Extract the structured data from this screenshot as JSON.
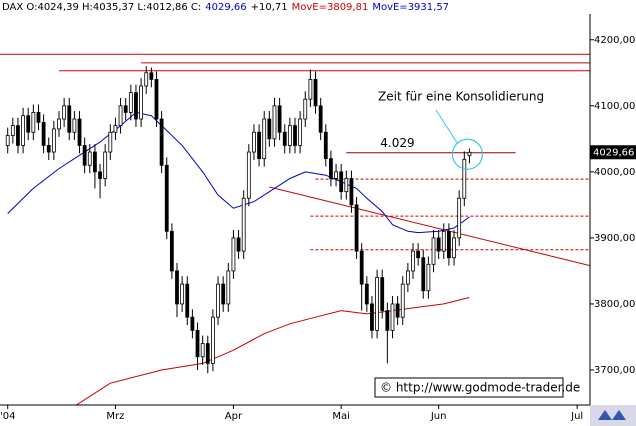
{
  "chart_data": {
    "type": "candlestick",
    "header": [
      {
        "text": "DAX O:4024,39 H:4035,37 L:4012,86 C:",
        "color": "#000000"
      },
      {
        "text": "4029,66",
        "color": "#0000cc"
      },
      {
        "text": "+10,71",
        "color": "#000000"
      },
      {
        "text": "MovE=3809,81",
        "color": "#cc0000"
      },
      {
        "text": "MovE=3931,57",
        "color": "#0000cc"
      }
    ],
    "x": [
      0,
      1,
      2,
      3,
      4,
      5,
      6,
      7,
      8,
      9,
      10,
      11,
      12,
      13,
      14,
      15,
      16,
      17,
      18,
      19,
      20,
      21,
      22,
      23,
      24,
      25,
      26,
      27,
      28,
      29,
      30,
      31,
      32,
      33,
      34,
      35,
      36,
      37,
      38,
      39,
      40,
      41,
      42,
      43,
      44,
      45,
      46,
      47,
      48,
      49,
      50,
      51,
      52,
      53,
      54,
      55,
      56,
      57,
      58,
      59,
      60,
      61,
      62,
      63,
      64,
      65,
      66,
      67,
      68,
      69,
      70,
      71,
      72,
      73,
      74,
      75,
      76,
      77,
      78,
      79,
      80,
      81,
      82,
      83,
      84,
      85,
      86,
      87,
      88,
      89,
      90
    ],
    "open": [
      4040,
      4055,
      4070,
      4040,
      4085,
      4060,
      4090,
      4075,
      4040,
      4030,
      4065,
      4080,
      4100,
      4060,
      4080,
      4040,
      4010,
      4030,
      4000,
      3990,
      4030,
      4060,
      4070,
      4100,
      4090,
      4120,
      4080,
      4130,
      4150,
      4140,
      4080,
      4010,
      3910,
      3850,
      3800,
      3830,
      3780,
      3760,
      3720,
      3740,
      3710,
      3780,
      3830,
      3800,
      3850,
      3900,
      3880,
      3960,
      4030,
      4060,
      4020,
      4080,
      4050,
      4100,
      4060,
      4040,
      4070,
      4040,
      4080,
      4110,
      4140,
      4100,
      4060,
      4020,
      3990,
      4000,
      3970,
      3990,
      3950,
      3880,
      3830,
      3800,
      3760,
      3840,
      3790,
      3760,
      3800,
      3780,
      3830,
      3850,
      3880,
      3870,
      3820,
      3860,
      3900,
      3880,
      3910,
      3870,
      3900,
      3960,
      4024.39
    ],
    "high": [
      4067,
      4082,
      4082,
      4097,
      4097,
      4102,
      4102,
      4087,
      4052,
      4077,
      4092,
      4112,
      4112,
      4092,
      4092,
      4052,
      4042,
      4042,
      4012,
      4042,
      4072,
      4082,
      4112,
      4112,
      4132,
      4132,
      4142,
      4160,
      4158,
      4152,
      4092,
      4022,
      3922,
      3862,
      3842,
      3842,
      3792,
      3772,
      3752,
      3752,
      3792,
      3842,
      3842,
      3862,
      3912,
      3912,
      3972,
      4042,
      4072,
      4072,
      4092,
      4092,
      4112,
      4112,
      4072,
      4082,
      4082,
      4092,
      4122,
      4155,
      4152,
      4112,
      4072,
      4032,
      4012,
      4012,
      4002,
      4002,
      3962,
      3892,
      3842,
      3812,
      3852,
      3852,
      3802,
      3812,
      3812,
      3842,
      3862,
      3892,
      3892,
      3882,
      3872,
      3912,
      3912,
      3922,
      3922,
      3912,
      3972,
      4031,
      4035.37
    ],
    "low": [
      4028,
      4043,
      4028,
      4028,
      4048,
      4048,
      4063,
      4028,
      4018,
      4018,
      4053,
      4068,
      4048,
      4048,
      4028,
      3998,
      3998,
      3975,
      3960,
      3978,
      4018,
      4048,
      4058,
      4078,
      4078,
      4068,
      4068,
      4118,
      4128,
      4068,
      3998,
      3898,
      3838,
      3780,
      3788,
      3768,
      3748,
      3700,
      3708,
      3695,
      3698,
      3768,
      3788,
      3788,
      3838,
      3868,
      3868,
      3948,
      4018,
      4008,
      4008,
      4038,
      4038,
      4048,
      4028,
      4028,
      4028,
      4028,
      4068,
      4098,
      4088,
      4048,
      4008,
      3978,
      3978,
      3958,
      3958,
      3938,
      3868,
      3790,
      3788,
      3748,
      3748,
      3778,
      3710,
      3748,
      3768,
      3768,
      3818,
      3838,
      3858,
      3808,
      3808,
      3848,
      3868,
      3868,
      3858,
      3858,
      3888,
      3948,
      4012.86
    ],
    "close": [
      4055,
      4070,
      4040,
      4085,
      4060,
      4090,
      4075,
      4040,
      4030,
      4065,
      4080,
      4100,
      4060,
      4080,
      4040,
      4010,
      4030,
      4000,
      3990,
      4030,
      4060,
      4070,
      4100,
      4090,
      4120,
      4080,
      4130,
      4150,
      4140,
      4080,
      4010,
      3910,
      3850,
      3800,
      3830,
      3780,
      3760,
      3720,
      3740,
      3710,
      3780,
      3830,
      3800,
      3850,
      3900,
      3880,
      3960,
      4030,
      4060,
      4020,
      4080,
      4050,
      4100,
      4060,
      4040,
      4070,
      4040,
      4080,
      4110,
      4140,
      4100,
      4060,
      4020,
      3990,
      4000,
      3970,
      3990,
      3950,
      3880,
      3830,
      3800,
      3760,
      3840,
      3790,
      3760,
      3800,
      3780,
      3830,
      3850,
      3880,
      3870,
      3820,
      3860,
      3900,
      3880,
      3910,
      3870,
      3900,
      3960,
      4019,
      4029.66
    ],
    "last_price_label": "4029,66",
    "moving_averages": [
      {
        "color": "#cc0000",
        "x": [
          13,
          20,
          30,
          38,
          44,
          50,
          55,
          60,
          65,
          70,
          75,
          80,
          85,
          90
        ],
        "values": [
          3645,
          3680,
          3700,
          3710,
          3730,
          3755,
          3770,
          3780,
          3790,
          3785,
          3790,
          3795,
          3800,
          3809.81
        ]
      },
      {
        "color": "#0000cc",
        "x": [
          0,
          5,
          10,
          14,
          18,
          22,
          25,
          28,
          30,
          34,
          38,
          41,
          44,
          48,
          52,
          55,
          58,
          62,
          65,
          68,
          70,
          73,
          75,
          78,
          80,
          84,
          87,
          90
        ],
        "values": [
          3937,
          3975,
          4005,
          4025,
          4045,
          4070,
          4090,
          4085,
          4070,
          4040,
          4000,
          3965,
          3945,
          3955,
          3975,
          3990,
          4000,
          3995,
          3985,
          3975,
          3960,
          3940,
          3920,
          3910,
          3908,
          3910,
          3915,
          3931.57
        ]
      }
    ],
    "levels": [
      {
        "value": 4178,
        "from": -1.5,
        "to": 113.5,
        "color": "#cc0000",
        "dashed": false
      },
      {
        "value": 4165,
        "from": 26,
        "to": 113.5,
        "color": "#cc0000",
        "dashed": false
      },
      {
        "value": 4153,
        "from": 10,
        "to": 113.5,
        "color": "#cc0000",
        "dashed": false
      },
      {
        "value": 3989,
        "from": 60,
        "to": 113.5,
        "color": "#cc0000",
        "dashed": true
      },
      {
        "value": 3933,
        "from": 59,
        "to": 113.5,
        "color": "#cc0000",
        "dashed": true
      },
      {
        "value": 3882,
        "from": 59,
        "to": 113.5,
        "color": "#cc0000",
        "dashed": true
      },
      {
        "value": 4029,
        "from": 66,
        "to": 99,
        "color": "#990000",
        "dashed": false,
        "label": "4.029"
      }
    ],
    "trendline": {
      "x": [
        51,
        113.5
      ],
      "values": [
        3977,
        3858
      ],
      "color": "#cc0000"
    },
    "annotation": "Zeit für eine Konsolidierung",
    "copyright": "© http://www.godmode-trader.de",
    "xlim": [
      -1.5,
      113.5
    ],
    "ylim": [
      3647,
      4239
    ],
    "xticks": [
      {
        "value": 0,
        "label": "'04"
      },
      {
        "value": 21,
        "label": "Mrz"
      },
      {
        "value": 44,
        "label": "Apr"
      },
      {
        "value": 65,
        "label": "Mai"
      },
      {
        "value": 84,
        "label": "Jun"
      },
      {
        "value": 111,
        "label": "Jul"
      }
    ],
    "yticks": [
      {
        "value": 3700,
        "label": "3700,00"
      },
      {
        "value": 3800,
        "label": "3800,00"
      },
      {
        "value": 3900,
        "label": "3900,00"
      },
      {
        "value": 4000,
        "label": "4000,00"
      },
      {
        "value": 4100,
        "label": "4100,00"
      },
      {
        "value": 4200,
        "label": "4200,00"
      }
    ]
  }
}
